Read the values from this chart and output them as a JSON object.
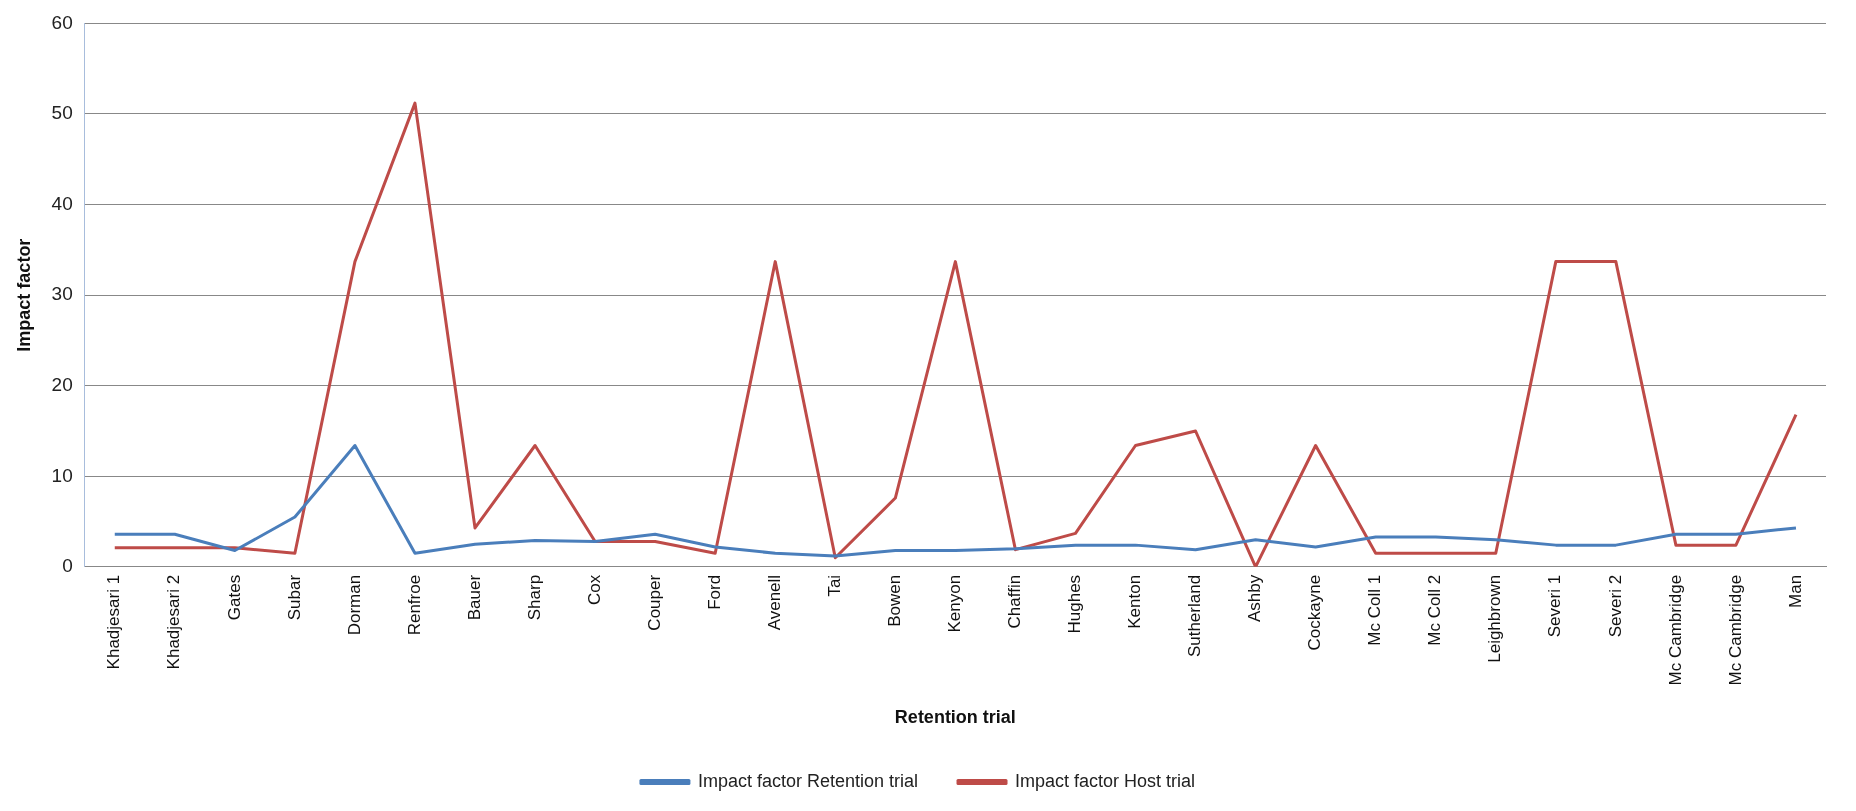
{
  "chart_data": {
    "type": "line",
    "xlabel": "Retention trial",
    "ylabel": "Impact factor",
    "categories": [
      "Khadjesari 1",
      "Khadjesari 2",
      "Gates",
      "Subar",
      "Dorman",
      "Renfroe",
      "Bauer",
      "Sharp",
      "Cox",
      "Couper",
      "Ford",
      "Avenell",
      "Tai",
      "Bowen",
      "Kenyon",
      "Chaffin",
      "Hughes",
      "Kenton",
      "Sutherland",
      "Ashby",
      "Cockayne",
      "Mc Coll 1",
      "Mc Coll 2",
      "Leighbrown",
      "Severi 1",
      "Severi 2",
      "Mc Cambridge",
      "Mc Cambridge",
      "Man"
    ],
    "series": [
      {
        "name": "Impact factor Retention trial",
        "color": "#4a7ebb",
        "values": [
          3.6,
          3.6,
          1.8,
          5.5,
          13.4,
          1.5,
          2.5,
          2.9,
          2.8,
          3.6,
          2.2,
          1.5,
          1.2,
          1.8,
          1.8,
          2.0,
          2.4,
          2.4,
          1.9,
          3.0,
          2.2,
          3.3,
          3.3,
          3.0,
          2.4,
          2.4,
          3.6,
          3.6,
          4.3
        ]
      },
      {
        "name": "Impact factor Host trial",
        "color": "#be4b48",
        "values": [
          2.1,
          2.1,
          2.1,
          1.5,
          33.7,
          51.2,
          4.3,
          13.4,
          2.8,
          2.8,
          1.5,
          33.7,
          1.0,
          7.6,
          33.7,
          1.9,
          3.7,
          13.4,
          15.0,
          0.0,
          13.4,
          1.5,
          1.5,
          1.5,
          33.7,
          33.7,
          2.4,
          2.4,
          16.8
        ]
      }
    ],
    "ylim": [
      0,
      60
    ],
    "yticks": [
      0,
      10,
      20,
      30,
      40,
      50,
      60
    ],
    "grid": "y",
    "legend": "bottom",
    "marker": "none",
    "line_style": "solid"
  }
}
